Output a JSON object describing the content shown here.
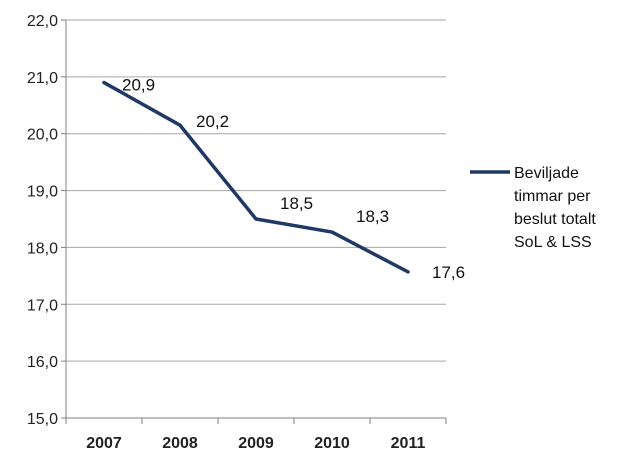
{
  "chart_data": {
    "type": "line",
    "categories": [
      "2007",
      "2008",
      "2009",
      "2010",
      "2011"
    ],
    "series": [
      {
        "name": "Beviljade timmar per beslut totalt SoL & LSS",
        "name_lines": [
          "Beviljade",
          "timmar per",
          "beslut totalt",
          "SoL & LSS"
        ],
        "values": [
          20.9,
          20.15,
          18.5,
          18.27,
          17.57
        ],
        "labels": [
          "20,9",
          "20,2",
          "18,5",
          "18,3",
          "17,6"
        ],
        "color": "#1f3864"
      }
    ],
    "ylim": [
      15.0,
      22.0
    ],
    "yticks": [
      15.0,
      16.0,
      17.0,
      18.0,
      19.0,
      20.0,
      21.0,
      22.0
    ],
    "ytick_labels": [
      "15,0",
      "16,0",
      "17,0",
      "18,0",
      "19,0",
      "20,0",
      "21,0",
      "22,0"
    ],
    "grid": true,
    "legend_position": "right",
    "title": "",
    "xlabel": "",
    "ylabel": ""
  }
}
